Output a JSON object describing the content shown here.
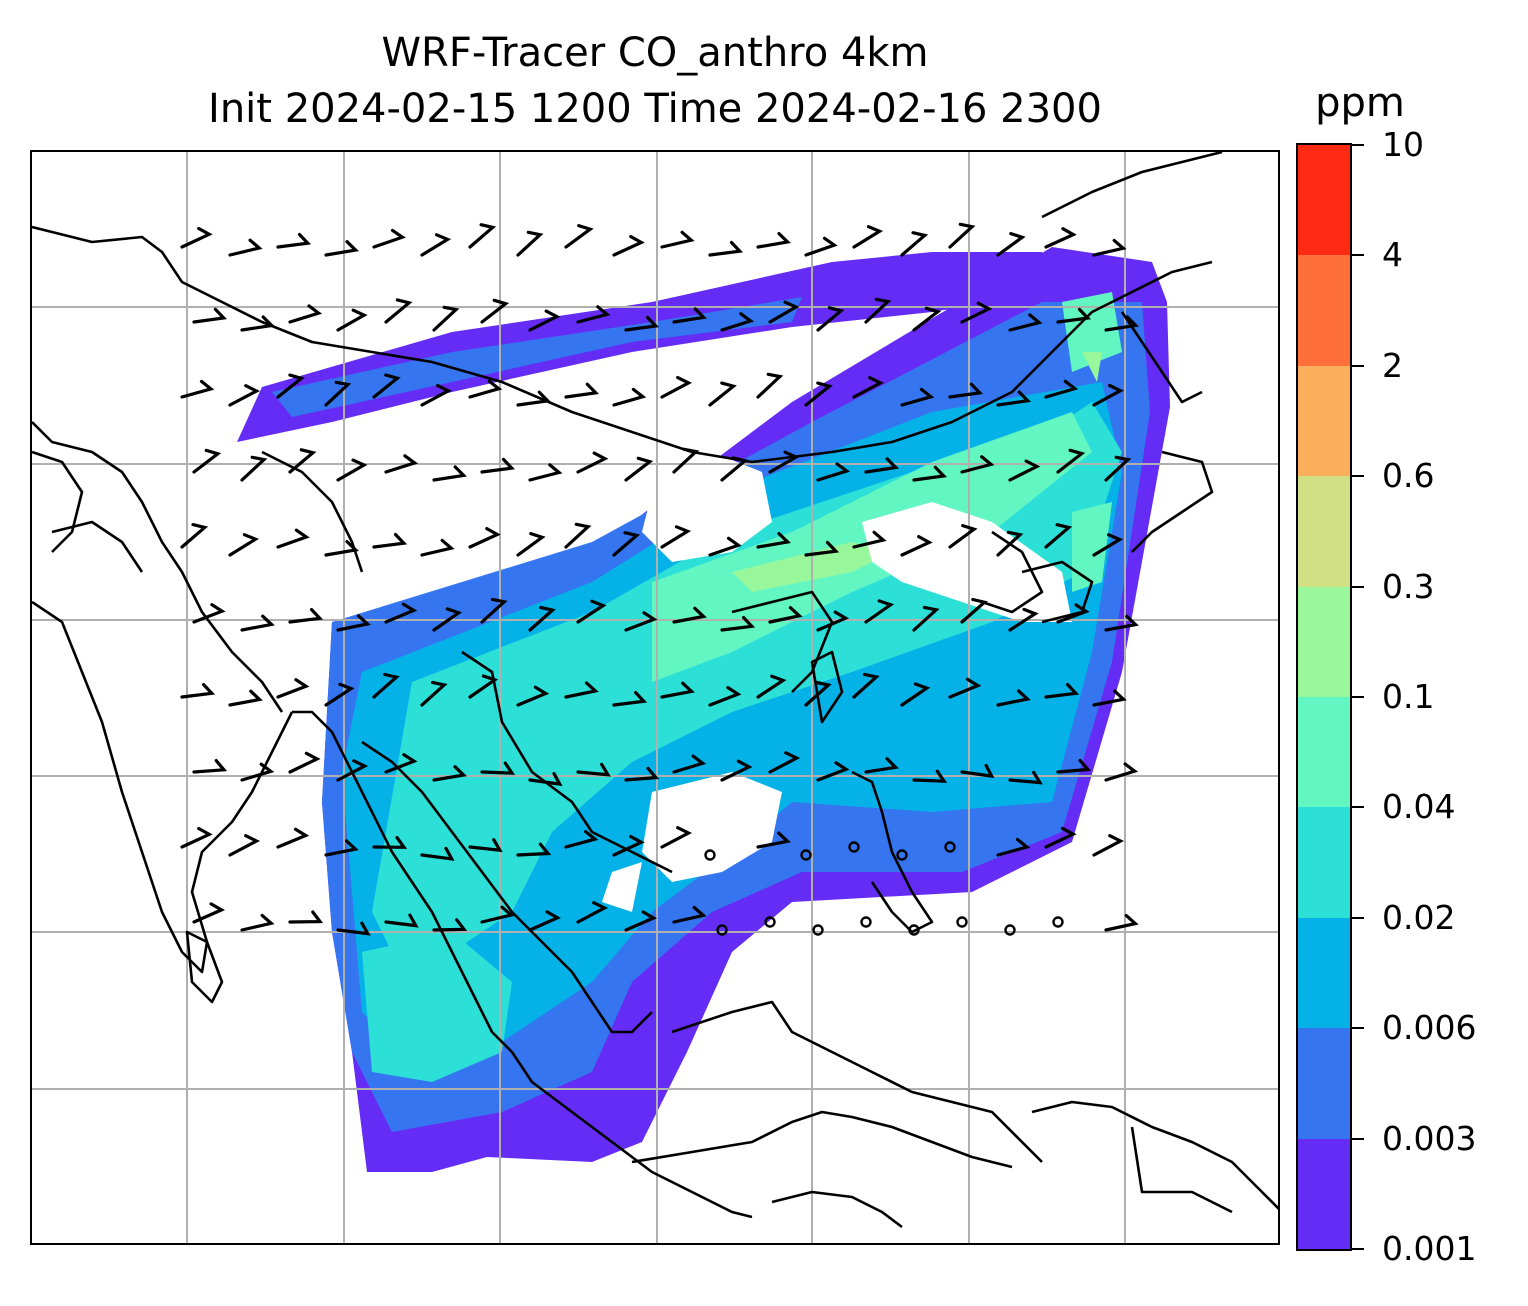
{
  "title": {
    "line1": "WRF-Tracer CO_anthro 4km",
    "line2": "Init 2024-02-15 1200 Time 2024-02-16 2300"
  },
  "colorbar": {
    "unit": "ppm",
    "ticks": [
      "0.001",
      "0.003",
      "0.006",
      "0.02",
      "0.04",
      "0.1",
      "0.3",
      "0.6",
      "2",
      "4",
      "10"
    ],
    "colors": [
      "#652cf5",
      "#3575f0",
      "#05b2e8",
      "#2ce0d8",
      "#62f7c2",
      "#97f79a",
      "#d1e084",
      "#fbae5c",
      "#ff6f3a",
      "#ff2a14"
    ]
  },
  "map": {
    "gridlines": true,
    "grid_color": "#b0b0b0",
    "overlay": "wind barbs"
  }
}
